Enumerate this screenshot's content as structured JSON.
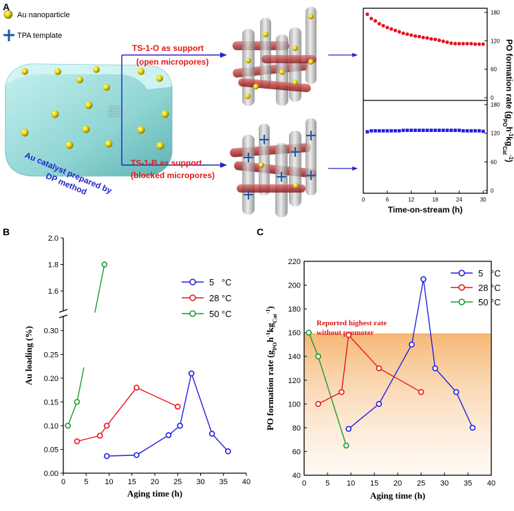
{
  "panel_letters": {
    "a": "A",
    "b": "B",
    "c": "C"
  },
  "schematic": {
    "legend_au": "Au nanoparticle",
    "legend_tpa": "TPA template",
    "catalyst_label_1": "Au catalyst prepared by",
    "catalyst_label_2": "DP method",
    "open_label_1": "TS-1-O as support",
    "open_label_2": "(open micropores)",
    "blocked_label_1": "TS-1-B as support",
    "blocked_label_2": "(blocked micropores)"
  },
  "colors": {
    "red": "#e8141c",
    "blue": "#1f1fe0",
    "green": "#1a9a2a",
    "schematic_blue": "#2424c8",
    "schematic_red": "#e01818",
    "shade": "#f6c28a"
  },
  "chart_data": [
    {
      "id": "A",
      "type": "scatter",
      "xlabel": "Time-on-stream (h)",
      "ylabel": "PO formation rate (g_PO h^-1 kg_Cat^-1)",
      "ylabel_text": {
        "main": "PO formation rate (g",
        "sub1": "PO",
        "mid": "h",
        "sup1": "-1",
        "mid2": "kg",
        "sub2": "Cat",
        "sup2": "-1",
        "end": ")"
      },
      "xlim": [
        0,
        31
      ],
      "ylim": [
        0,
        180
      ],
      "xticks": [
        "0",
        "6",
        "12",
        "18",
        "24",
        "30"
      ],
      "yticks": [
        "0",
        "60",
        "120",
        "180"
      ],
      "series": [
        {
          "name": "TS-1-O",
          "color": "#e8141c",
          "x": [
            1,
            2,
            3,
            4,
            5,
            6,
            7,
            8,
            9,
            10,
            11,
            12,
            13,
            14,
            15,
            16,
            17,
            18,
            19,
            20,
            21,
            22,
            23,
            24,
            25,
            26,
            27,
            28,
            29,
            30
          ],
          "y": [
            176,
            167,
            162,
            156,
            152,
            148,
            145,
            142,
            139,
            136,
            134,
            132,
            130,
            129,
            127,
            126,
            124,
            123,
            121,
            119,
            117,
            115,
            114,
            114,
            114,
            114,
            114,
            113,
            113,
            113
          ]
        },
        {
          "name": "TS-1-B",
          "color": "#1f1fe0",
          "x": [
            1,
            2,
            3,
            4,
            5,
            6,
            7,
            8,
            9,
            10,
            11,
            12,
            13,
            14,
            15,
            16,
            17,
            18,
            19,
            20,
            21,
            22,
            23,
            24,
            25,
            26,
            27,
            28,
            29,
            30
          ],
          "y": [
            123,
            125,
            125,
            125,
            125,
            125,
            125,
            125,
            125,
            126,
            126,
            126,
            126,
            126,
            126,
            126,
            126,
            126,
            126,
            126,
            126,
            126,
            126,
            126,
            125,
            125,
            125,
            125,
            125,
            124
          ]
        }
      ]
    },
    {
      "id": "B",
      "type": "line",
      "xlabel": "Aging time (h)",
      "ylabel": "Au loading (%)",
      "xlim": [
        0,
        40
      ],
      "ylim_lower": [
        0,
        0.33
      ],
      "ylim_upper": [
        1.45,
        2.0
      ],
      "xticks": [
        "0",
        "5",
        "10",
        "15",
        "20",
        "25",
        "30",
        "35",
        "40"
      ],
      "yticks_lower": [
        "0.00",
        "0.05",
        "0.10",
        "0.15",
        "0.20",
        "0.25",
        "0.30"
      ],
      "yticks_upper": [
        "1.6",
        "1.8",
        "2.0"
      ],
      "series": [
        {
          "name": "5",
          "unit": "°C",
          "color": "#1f1fe0",
          "x": [
            9.5,
            16,
            23,
            25.5,
            28,
            32.5,
            36
          ],
          "y": [
            0.036,
            0.038,
            0.08,
            0.1,
            0.21,
            0.083,
            0.046
          ]
        },
        {
          "name": "28",
          "unit": "°C",
          "color": "#e8141c",
          "x": [
            3,
            8,
            9.5,
            16,
            25
          ],
          "y": [
            0.067,
            0.079,
            0.1,
            0.18,
            0.14
          ]
        },
        {
          "name": "50",
          "unit": "°C",
          "color": "#1a9a2a",
          "x": [
            1,
            3,
            9
          ],
          "y": [
            0.1,
            0.15,
            1.8
          ]
        }
      ]
    },
    {
      "id": "C",
      "type": "line",
      "xlabel": "Aging time (h)",
      "ylabel": "PO formation rate (g_PO h^-1 kg_Cat^-1)",
      "ylabel_text": {
        "main": "PO formation rate (g",
        "sub1": "PO",
        "mid": "h",
        "sup1": "-1",
        "mid2": "kg",
        "sub2": "Cat",
        "sup2": "-1",
        "end": ")"
      },
      "xlim": [
        0,
        40
      ],
      "ylim": [
        40,
        220
      ],
      "xticks": [
        "0",
        "5",
        "10",
        "15",
        "20",
        "25",
        "30",
        "35",
        "40"
      ],
      "yticks": [
        "40",
        "60",
        "80",
        "100",
        "120",
        "140",
        "160",
        "180",
        "200",
        "220"
      ],
      "annotation_1": "Reported highest rate",
      "annotation_2": "without promoter",
      "shade_value": 159,
      "series": [
        {
          "name": "5",
          "unit": "°C",
          "color": "#1f1fe0",
          "x": [
            9.5,
            16,
            23,
            25.5,
            28,
            32.5,
            36
          ],
          "y": [
            79,
            100,
            150,
            205,
            130,
            110,
            80
          ]
        },
        {
          "name": "28",
          "unit": "°C",
          "color": "#e8141c",
          "x": [
            3,
            8,
            9.5,
            16,
            25
          ],
          "y": [
            100,
            110,
            158,
            130,
            110
          ]
        },
        {
          "name": "50",
          "unit": "°C",
          "color": "#1a9a2a",
          "x": [
            1,
            3,
            9
          ],
          "y": [
            160,
            140,
            65
          ]
        }
      ]
    }
  ]
}
